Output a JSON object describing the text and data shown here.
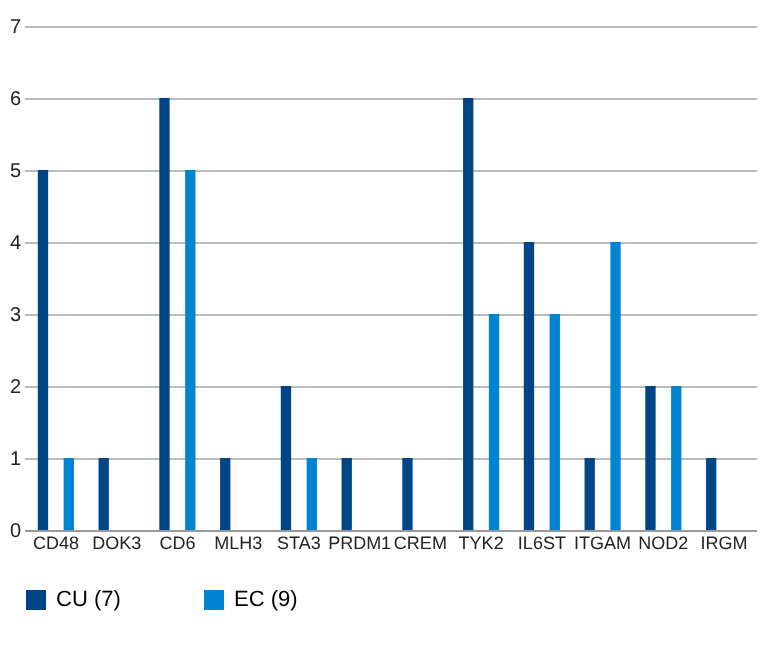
{
  "chart_data": {
    "type": "bar",
    "categories": [
      "CD48",
      "DOK3",
      "CD6",
      "MLH3",
      "STA3",
      "PRDM1",
      "CREM",
      "TYK2",
      "IL6ST",
      "ITGAM",
      "NOD2",
      "IRGM"
    ],
    "series": [
      {
        "name": "CU (7)",
        "color": "#004586",
        "values": [
          5,
          1,
          6,
          1,
          2,
          1,
          1,
          6,
          4,
          1,
          2,
          1
        ]
      },
      {
        "name": "EC (9)",
        "color": "#0084d1",
        "values": [
          1,
          null,
          5,
          null,
          1,
          null,
          null,
          3,
          3,
          4,
          2,
          null
        ]
      }
    ],
    "ylim": [
      0,
      7
    ],
    "yticks": [
      0,
      1,
      2,
      3,
      4,
      5,
      6,
      7
    ],
    "grid": "y",
    "legend": "bottom"
  }
}
